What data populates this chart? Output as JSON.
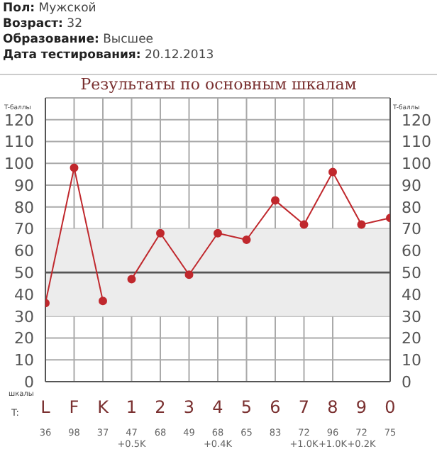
{
  "chart_data": {
    "type": "line",
    "title": "Результаты по основным шкалам",
    "xlabel": "шкалы",
    "ylabel": "T-баллы",
    "y2label": "T-баллы",
    "annotations": [
      "Пол: Мужской",
      "Возраст: 32",
      "Образование: Высшее",
      "Дата тестирования: 20.12.2013",
      "T:",
      "36",
      "98",
      "37",
      "47\n+0.5K",
      "68",
      "49",
      "68\n+0.4K",
      "65",
      "83",
      "72\n+1.0K",
      "96\n+1.0K",
      "72\n+0.2K",
      "75"
    ],
    "categories": [
      "L",
      "F",
      "K",
      "1",
      "2",
      "3",
      "4",
      "5",
      "6",
      "7",
      "8",
      "9",
      "0"
    ],
    "series": [
      {
        "color": "#c0282d",
        "values": [
          36,
          98,
          37,
          null,
          null,
          null,
          null,
          null,
          null,
          null,
          null,
          null,
          null
        ]
      },
      {
        "color": "#c0282d",
        "values": [
          null,
          null,
          null,
          47,
          68,
          49,
          68,
          65,
          83,
          72,
          96,
          72,
          75
        ]
      }
    ],
    "ylim": [
      0,
      130
    ],
    "yticks": [
      0,
      10,
      20,
      30,
      40,
      50,
      60,
      70,
      80,
      90,
      100,
      110,
      120
    ],
    "y2lim": [
      0,
      130
    ],
    "y2ticks": [
      0,
      10,
      20,
      30,
      40,
      50,
      60,
      70,
      80,
      90,
      100,
      110,
      120
    ],
    "bands": [
      {
        "axis": "y",
        "from": 30,
        "to": 70,
        "color": "#ececec"
      }
    ],
    "ref_lines": [
      {
        "axis": "y",
        "value": 50,
        "color": "#555555"
      }
    ],
    "grid": true,
    "marker": "circle",
    "line_style": "solid",
    "legend": false
  }
}
